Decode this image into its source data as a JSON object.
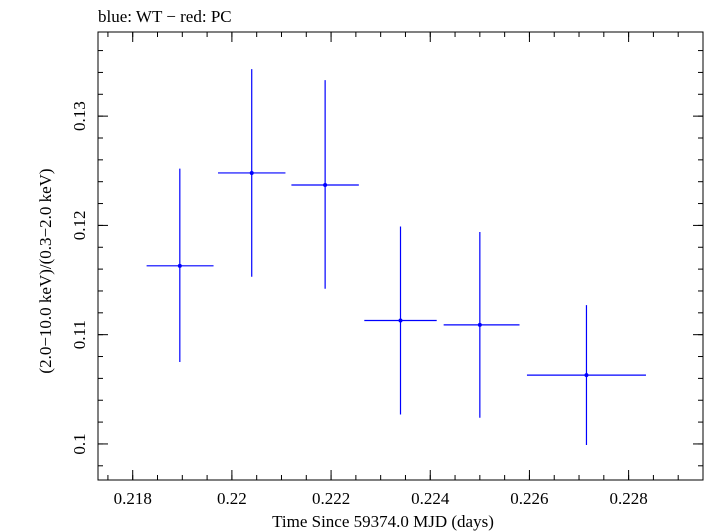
{
  "chart_data": {
    "type": "scatter",
    "title": "blue: WT − red: PC",
    "xlabel": "Time Since 59374.0 MJD (days)",
    "ylabel": "(2.0−10.0 keV)/(0.3−2.0 keV)",
    "xlim": [
      0.2173,
      0.2295
    ],
    "ylim": [
      0.0967,
      0.1377
    ],
    "x_ticks": [
      {
        "value": 0.218,
        "label": "0.218"
      },
      {
        "value": 0.22,
        "label": "0.22"
      },
      {
        "value": 0.222,
        "label": "0.222"
      },
      {
        "value": 0.224,
        "label": "0.224"
      },
      {
        "value": 0.226,
        "label": "0.226"
      },
      {
        "value": 0.228,
        "label": "0.228"
      }
    ],
    "y_ticks": [
      {
        "value": 0.1,
        "label": "0.1"
      },
      {
        "value": 0.11,
        "label": "0.11"
      },
      {
        "value": 0.12,
        "label": "0.12"
      },
      {
        "value": 0.13,
        "label": "0.13"
      }
    ],
    "grid": false,
    "series": [
      {
        "name": "WT",
        "color": "#0000ff",
        "points": [
          {
            "x": 0.21895,
            "xerr_lo": 0.00067,
            "xerr_hi": 0.00068,
            "y": 0.1163,
            "yerr_lo": 0.0088,
            "yerr_hi": 0.0089
          },
          {
            "x": 0.2204,
            "xerr_lo": 0.00068,
            "xerr_hi": 0.00068,
            "y": 0.1248,
            "yerr_lo": 0.0095,
            "yerr_hi": 0.0095
          },
          {
            "x": 0.22188,
            "xerr_lo": 0.00068,
            "xerr_hi": 0.00068,
            "y": 0.1237,
            "yerr_lo": 0.0095,
            "yerr_hi": 0.0096
          },
          {
            "x": 0.2234,
            "xerr_lo": 0.00073,
            "xerr_hi": 0.00073,
            "y": 0.1113,
            "yerr_lo": 0.0086,
            "yerr_hi": 0.0086
          },
          {
            "x": 0.225,
            "xerr_lo": 0.00073,
            "xerr_hi": 0.0008,
            "y": 0.1109,
            "yerr_lo": 0.0085,
            "yerr_hi": 0.0085
          },
          {
            "x": 0.22715,
            "xerr_lo": 0.0012,
            "xerr_hi": 0.0012,
            "y": 0.1063,
            "yerr_lo": 0.0064,
            "yerr_hi": 0.0064
          }
        ]
      }
    ]
  }
}
